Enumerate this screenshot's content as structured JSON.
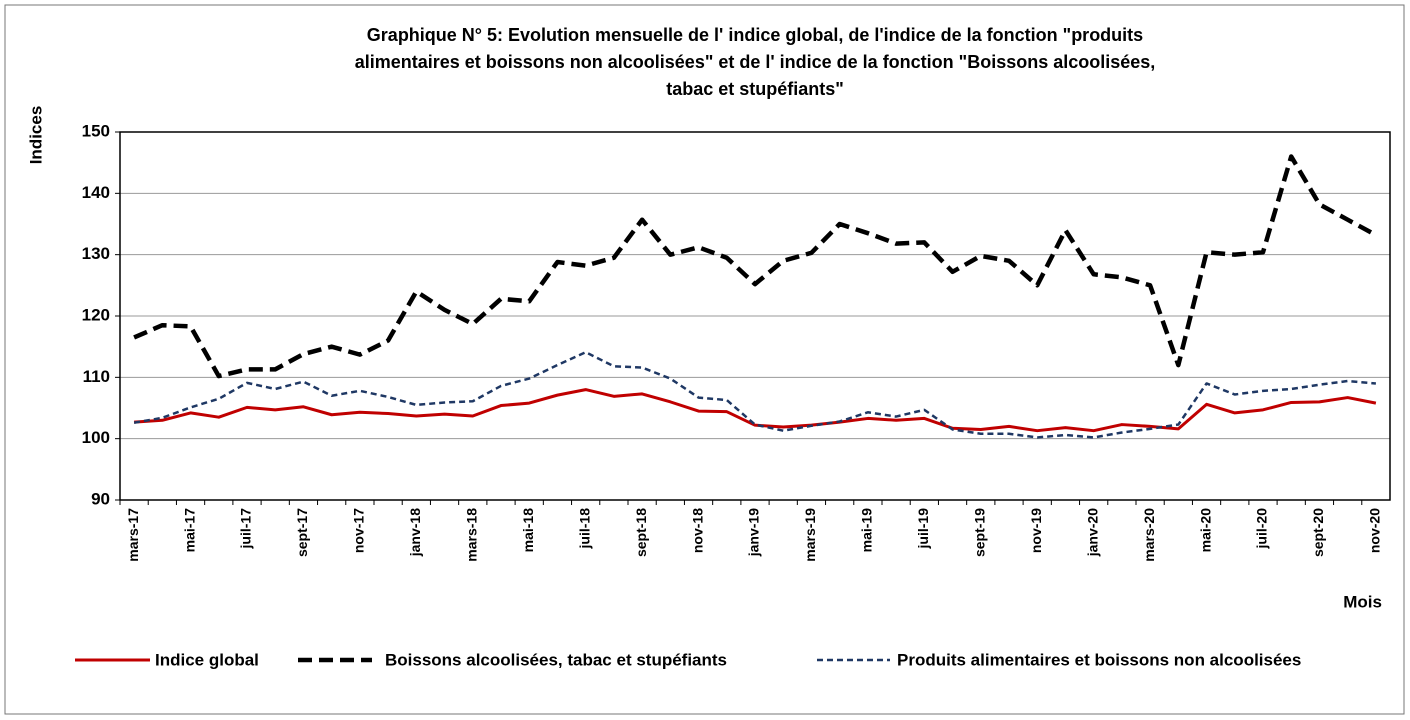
{
  "chart_data": {
    "type": "line",
    "title": [
      "Graphique N° 5: Evolution mensuelle de l' indice global, de l'indice de la fonction \"produits",
      "alimentaires et boissons non alcoolisées\" et de l' indice de la fonction \"Boissons alcoolisées,",
      "tabac et stupéfiants\""
    ],
    "ylabel": "Indices",
    "xlabel": "Mois",
    "categories": [
      "mars-17",
      null,
      "mai-17",
      null,
      "juil-17",
      null,
      "sept-17",
      null,
      "nov-17",
      null,
      "janv-18",
      null,
      "mars-18",
      null,
      "mai-18",
      null,
      "juil-18",
      null,
      "sept-18",
      null,
      "nov-18",
      null,
      "janv-19",
      null,
      "mars-19",
      null,
      "mai-19",
      null,
      "juil-19",
      null,
      "sept-19",
      null,
      "nov-19",
      null,
      "janv-20",
      null,
      "mars-20",
      null,
      "mai-20",
      null,
      "juil-20",
      null,
      "sept-20",
      null,
      "nov-20"
    ],
    "series": [
      {
        "name": "Indice global",
        "color": "#c00000",
        "line_style": "solid",
        "values": [
          102.7,
          103,
          104.2,
          103.5,
          105.1,
          104.7,
          105.2,
          103.9,
          104.3,
          104.1,
          103.7,
          104,
          103.7,
          105.4,
          105.8,
          107.1,
          108,
          106.9,
          107.3,
          106,
          104.5,
          104.4,
          102.2,
          101.9,
          102.2,
          102.7,
          103.3,
          103,
          103.3,
          101.7,
          101.5,
          102,
          101.3,
          101.8,
          101.3,
          102.3,
          102,
          101.6,
          105.6,
          104.2,
          104.7,
          105.9,
          106,
          106.7,
          105.8
        ]
      },
      {
        "name": "Boissons alcoolisées, tabac et stupéfiants",
        "color": "#000000",
        "line_style": "dashed",
        "values": [
          116.5,
          118.5,
          118.3,
          110.2,
          111.3,
          111.3,
          113.8,
          115,
          113.7,
          116,
          124,
          121,
          118.7,
          122.8,
          122.4,
          128.8,
          128.2,
          129.5,
          135.7,
          130,
          131.2,
          129.5,
          125.2,
          129,
          130.3,
          135,
          133.5,
          131.8,
          132,
          127.2,
          129.8,
          129,
          125,
          134,
          126.8,
          126.3,
          125,
          112,
          130.4,
          130,
          130.4,
          146,
          138.2,
          135.7,
          133.2
        ]
      },
      {
        "name": "Produits alimentaires et boissons non alcoolisées",
        "color": "#1f3864",
        "line_style": "short-dashed",
        "values": [
          102.6,
          103.4,
          105.1,
          106.5,
          109.1,
          108.1,
          109.3,
          107,
          107.8,
          106.8,
          105.5,
          105.9,
          106.1,
          108.6,
          109.8,
          112,
          114.1,
          111.8,
          111.6,
          109.8,
          106.7,
          106.3,
          102.3,
          101.3,
          102.1,
          102.8,
          104.3,
          103.6,
          104.7,
          101.5,
          100.8,
          100.8,
          100.2,
          100.6,
          100.2,
          101,
          101.6,
          102.3,
          109,
          107.2,
          107.8,
          108.1,
          108.8,
          109.4,
          109
        ]
      }
    ],
    "ylim": [
      90,
      150
    ],
    "yticks": [
      90,
      100,
      110,
      120,
      130,
      140,
      150
    ],
    "grid": true,
    "legend": "bottom"
  }
}
